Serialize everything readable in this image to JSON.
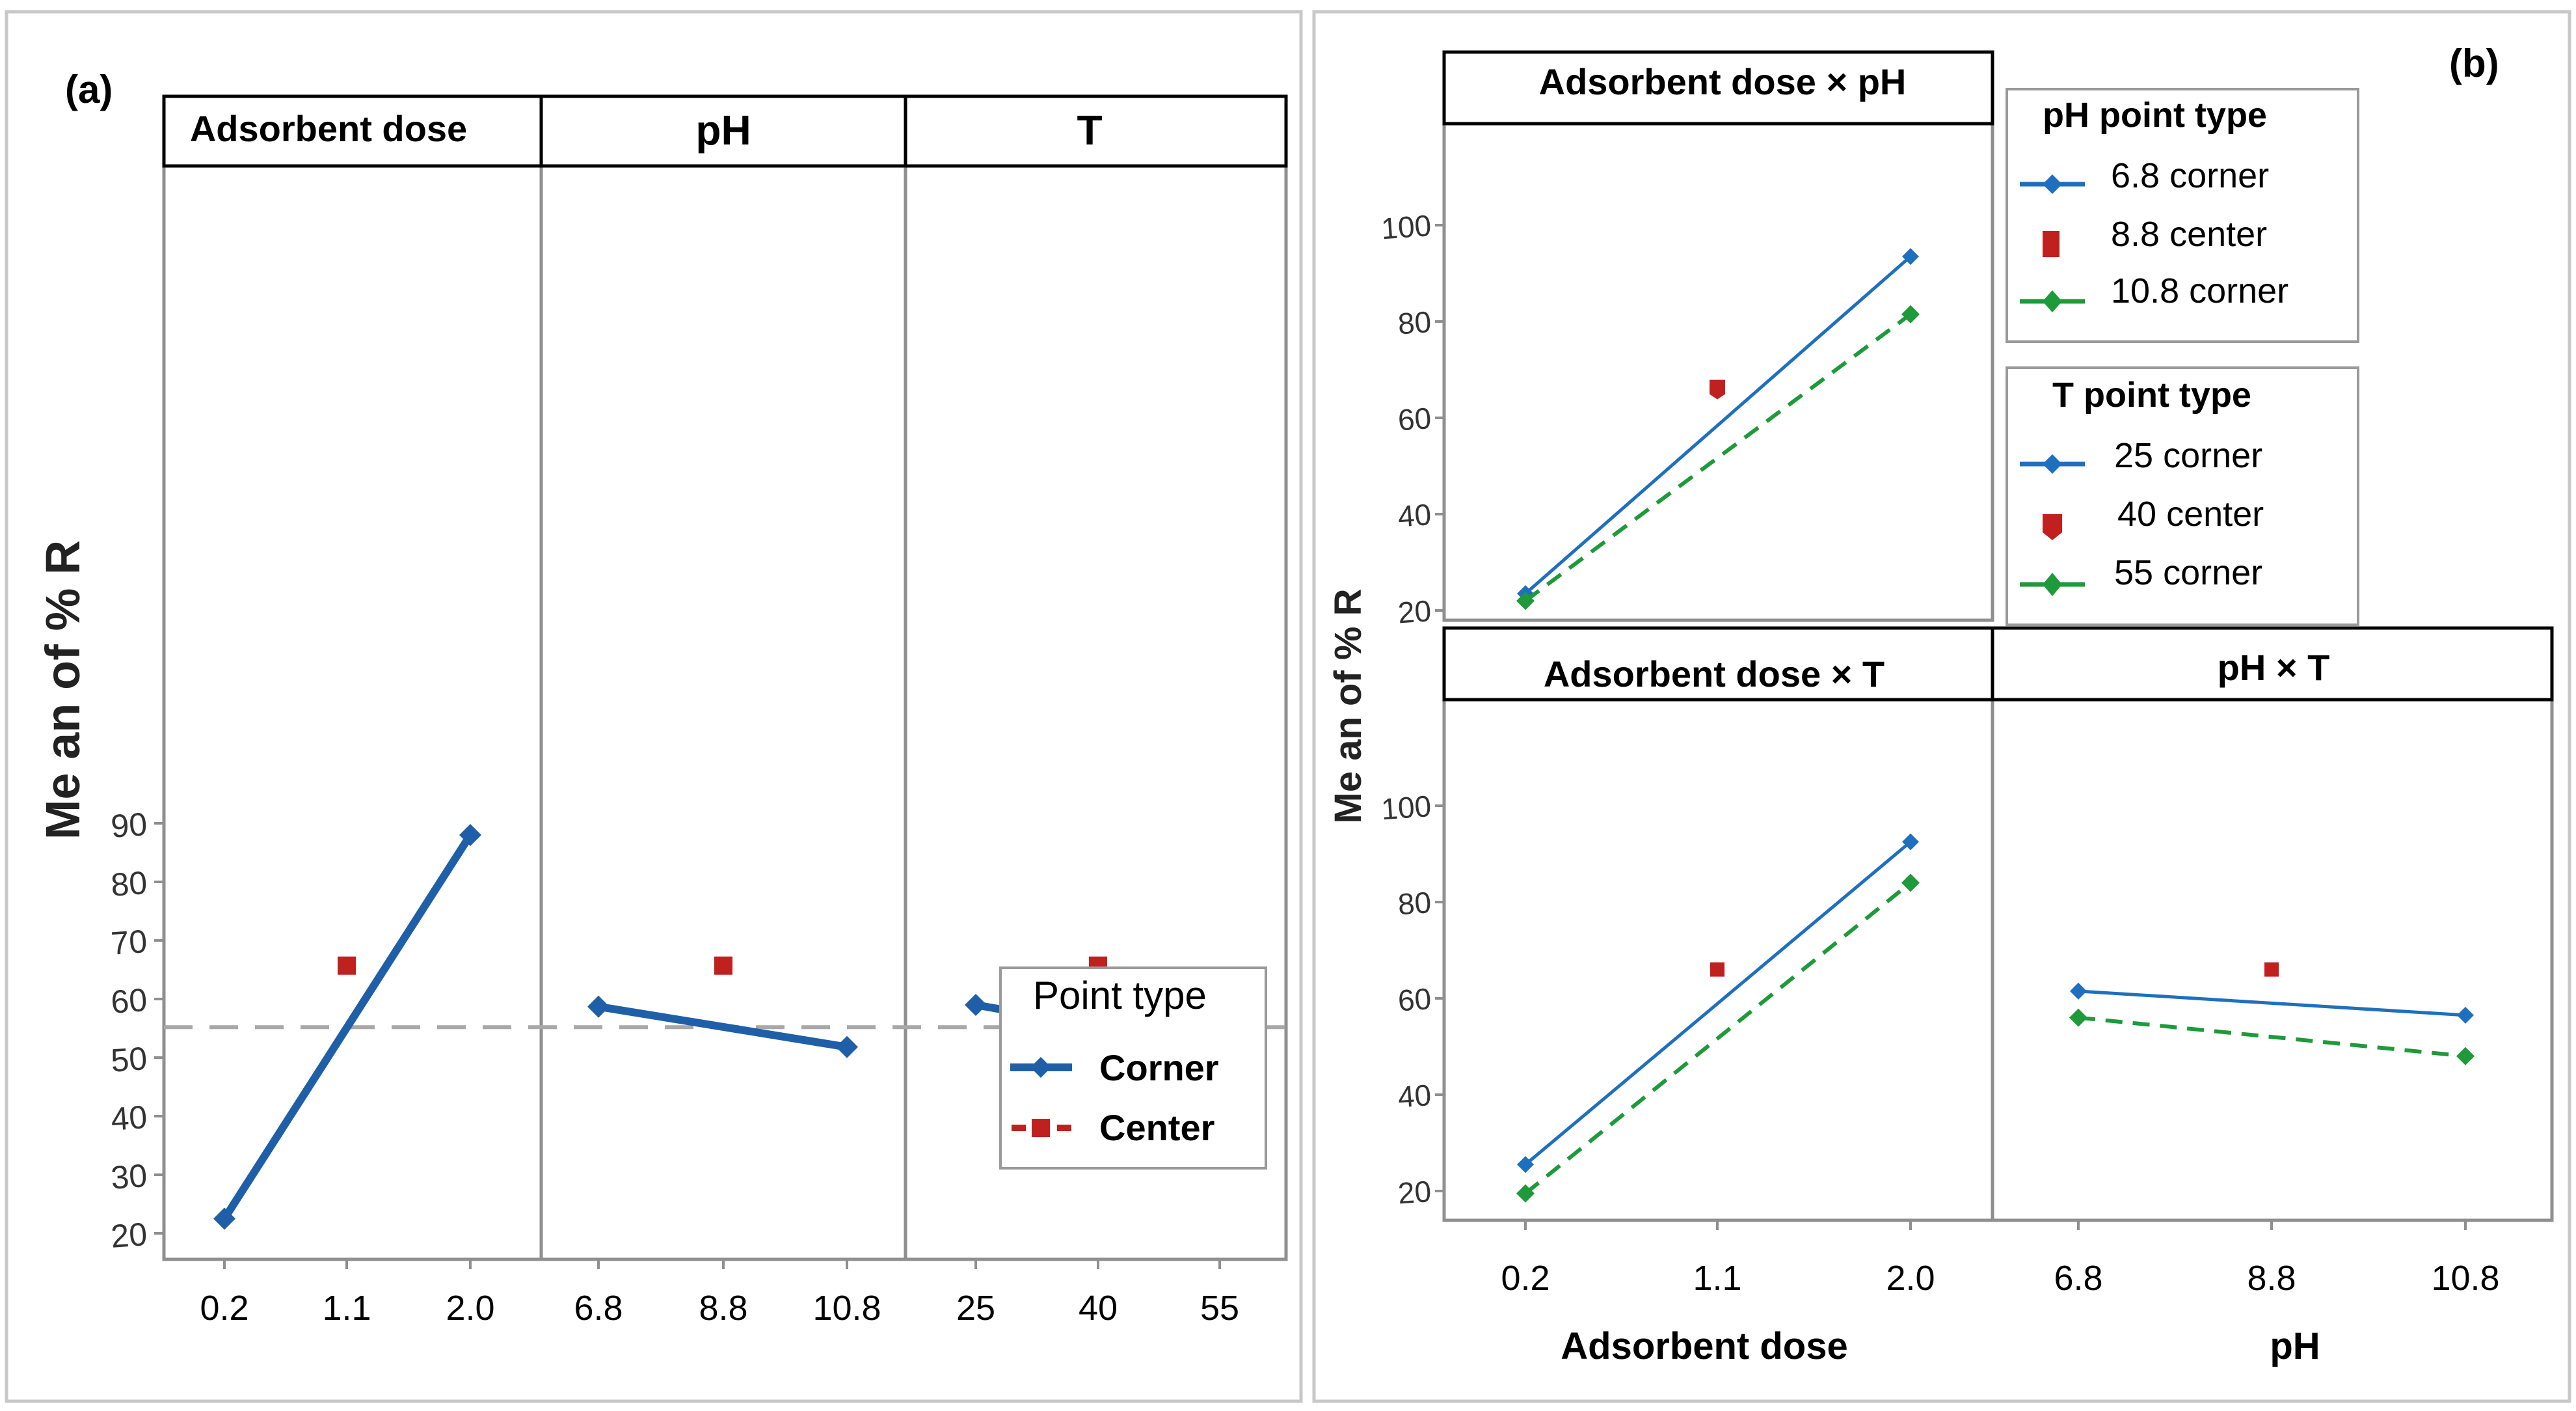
{
  "panel_a": {
    "label": "(a)",
    "y_axis_label": "Me an of % R",
    "legend": {
      "title": "Point type",
      "items": [
        {
          "label": "Corner",
          "kind": "line-diamond"
        },
        {
          "label": "Center",
          "kind": "dash-square"
        }
      ]
    }
  },
  "panel_b": {
    "label": "(b)",
    "y_axis_label": "Me an of % R",
    "x_axis_labels": [
      "Adsorbent dose",
      "pH"
    ],
    "legend_ph": {
      "title": "pH point type",
      "items": [
        {
          "label": "6.8 corner",
          "kind": "line-diamond",
          "color": "#1f6fbf"
        },
        {
          "label": "8.8 center",
          "kind": "square",
          "color": "#c0201e"
        },
        {
          "label": "10.8 corner",
          "kind": "line-diamond",
          "color": "#1e9a3a"
        }
      ]
    },
    "legend_t": {
      "title": "T point type",
      "items": [
        {
          "label": "25 corner",
          "kind": "line-diamond",
          "color": "#1f6fbf"
        },
        {
          "label": "40 center",
          "kind": "hex",
          "color": "#c0201e"
        },
        {
          "label": "55 corner",
          "kind": "line-diamond",
          "color": "#1e9a3a"
        }
      ]
    }
  },
  "colors": {
    "corner_a": "#1f5fa8",
    "corner_blue": "#1f6fbf",
    "center_red": "#c0201e",
    "corner_green": "#1e9a3a",
    "mean_line": "#a8a8a8"
  },
  "chart_data": [
    {
      "type": "line",
      "panel": "a",
      "title": "",
      "ylabel": "Me an of % R",
      "ylim": [
        18,
        92
      ],
      "yticks": [
        20,
        30,
        40,
        50,
        60,
        70,
        80,
        90
      ],
      "overall_mean": 55.2,
      "facets": [
        {
          "title": "Adsorbent dose",
          "x_ticks": [
            "0.2",
            "1.1",
            "2.0"
          ],
          "series": [
            {
              "name": "Corner",
              "x": [
                "0.2",
                "2.0"
              ],
              "values": [
                22.5,
                88.0
              ]
            },
            {
              "name": "Center",
              "x": [
                "1.1"
              ],
              "values": [
                65.7
              ]
            }
          ]
        },
        {
          "title": "pH",
          "x_ticks": [
            "6.8",
            "8.8",
            "10.8"
          ],
          "series": [
            {
              "name": "Corner",
              "x": [
                "6.8",
                "10.8"
              ],
              "values": [
                58.7,
                51.8
              ]
            },
            {
              "name": "Center",
              "x": [
                "8.8"
              ],
              "values": [
                65.7
              ]
            }
          ]
        },
        {
          "title": "T",
          "x_ticks": [
            "25",
            "40",
            "55"
          ],
          "series": [
            {
              "name": "Corner",
              "x": [
                "25",
                "55"
              ],
              "values": [
                59.0,
                51.6
              ]
            },
            {
              "name": "Center",
              "x": [
                "40"
              ],
              "values": [
                65.7
              ]
            }
          ]
        }
      ]
    },
    {
      "type": "line",
      "panel": "b",
      "title": "",
      "ylabel": "Me an of % R",
      "ylim": [
        18,
        102
      ],
      "yticks": [
        20,
        40,
        60,
        80,
        100
      ],
      "facets": [
        {
          "title": "Adsorbent dose × pH",
          "x_ticks": [
            "0.2",
            "1.1",
            "2.0"
          ],
          "series": [
            {
              "name": "6.8 corner",
              "x": [
                "0.2",
                "2.0"
              ],
              "values": [
                23.5,
                93.5
              ]
            },
            {
              "name": "8.8 center",
              "x": [
                "1.1"
              ],
              "values": [
                66.0
              ]
            },
            {
              "name": "10.8 corner",
              "x": [
                "0.2",
                "2.0"
              ],
              "values": [
                22.0,
                81.5
              ]
            }
          ]
        },
        {
          "title": "Adsorbent dose × T",
          "x_ticks": [
            "0.2",
            "1.1",
            "2.0"
          ],
          "series": [
            {
              "name": "25 corner",
              "x": [
                "0.2",
                "2.0"
              ],
              "values": [
                25.5,
                92.5
              ]
            },
            {
              "name": "40 center",
              "x": [
                "1.1"
              ],
              "values": [
                66.0
              ]
            },
            {
              "name": "55 corner",
              "x": [
                "0.2",
                "2.0"
              ],
              "values": [
                19.5,
                84.0
              ]
            }
          ]
        },
        {
          "title": "pH × T",
          "x_ticks": [
            "6.8",
            "8.8",
            "10.8"
          ],
          "series": [
            {
              "name": "25 corner",
              "x": [
                "6.8",
                "10.8"
              ],
              "values": [
                61.5,
                56.5
              ]
            },
            {
              "name": "40 center",
              "x": [
                "8.8"
              ],
              "values": [
                66.0
              ]
            },
            {
              "name": "55 corner",
              "x": [
                "6.8",
                "10.8"
              ],
              "values": [
                56.0,
                48.0
              ]
            }
          ]
        }
      ]
    }
  ]
}
